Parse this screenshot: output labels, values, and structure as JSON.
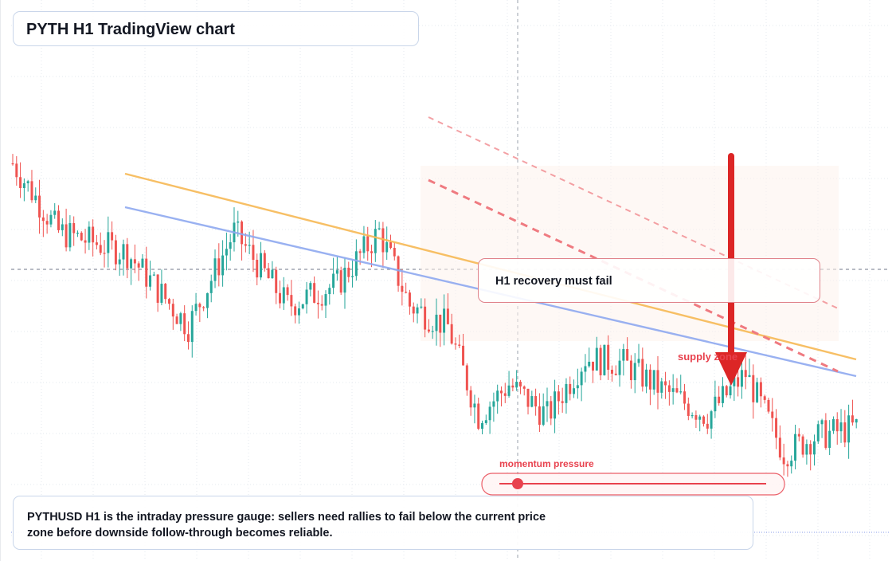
{
  "title": "PYTH H1 TradingView chart",
  "note": "PYTHUSD H1 is the intraday pressure gauge: sellers need rallies to fail below the current price zone before downside follow-through becomes reliable.",
  "callout": "H1 recovery must fail",
  "supply_label": "supply zone",
  "momentum_label": "momentum pressure",
  "colors": {
    "up": "#26a69a",
    "down": "#ef5350",
    "orange_line": "#f7b955",
    "blue_line": "#8fa9f0",
    "dashed_channel": "#ef7a80",
    "arrow": "#dc2626",
    "grid": "#e6e9ef"
  },
  "chart_data": {
    "type": "candlestick",
    "timeframe": "H1",
    "symbol": "PYTHUSD",
    "price_axis": "hidden",
    "time_axis": "hidden",
    "grid": true,
    "seed_path": [
      [
        0,
        75
      ],
      [
        12,
        62
      ],
      [
        30,
        58
      ],
      [
        46,
        44
      ],
      [
        58,
        62
      ],
      [
        72,
        48
      ],
      [
        85,
        52
      ],
      [
        96,
        62
      ],
      [
        104,
        48
      ],
      [
        114,
        44
      ],
      [
        122,
        27
      ],
      [
        130,
        33
      ],
      [
        140,
        27
      ],
      [
        150,
        38
      ],
      [
        160,
        37
      ],
      [
        170,
        32
      ],
      [
        182,
        27
      ],
      [
        192,
        35
      ],
      [
        202,
        20
      ],
      [
        210,
        23
      ],
      [
        222,
        25
      ]
    ],
    "series": [
      {
        "name": "",
        "style": "solid",
        "color": "orange",
        "start": 0.72,
        "end": 0.35
      },
      {
        "name": "",
        "style": "solid",
        "color": "blue",
        "start": 0.68,
        "end": 0.31
      }
    ]
  }
}
